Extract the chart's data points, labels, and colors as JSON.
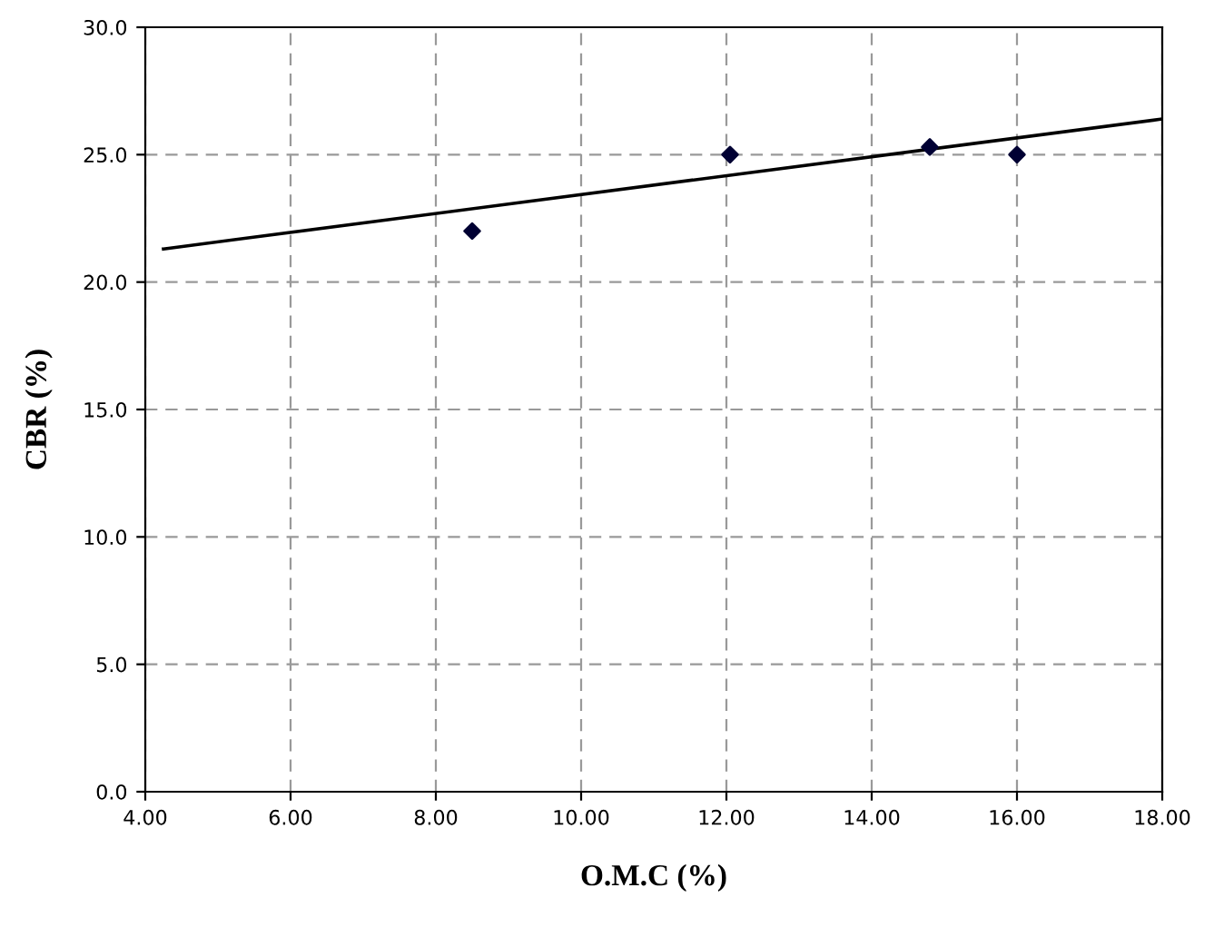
{
  "chart_data": {
    "type": "scatter",
    "xlabel": "O.M.C (%)",
    "ylabel": "CBR (%)",
    "series": [
      {
        "color": "#000033",
        "x": [
          8.5,
          12.05,
          14.8,
          16.0
        ],
        "values": [
          22.0,
          25.0,
          25.3,
          25.0
        ],
        "marker": "diamond"
      },
      {
        "type": "line",
        "color": "#000000",
        "x": [
          4.25,
          18.0
        ],
        "values": [
          21.3,
          26.4
        ],
        "line_style": "solid"
      }
    ],
    "xlim": [
      4,
      18
    ],
    "xticks": [
      {
        "value": 4,
        "label": "4.00"
      },
      {
        "value": 6,
        "label": "6.00"
      },
      {
        "value": 8,
        "label": "8.00"
      },
      {
        "value": 10,
        "label": "10.00"
      },
      {
        "value": 12,
        "label": "12.00"
      },
      {
        "value": 14,
        "label": "14.00"
      },
      {
        "value": 16,
        "label": "16.00"
      },
      {
        "value": 18,
        "label": "18.00"
      }
    ],
    "ylim": [
      0,
      30
    ],
    "yticks": [
      {
        "value": 0,
        "label": "0.0"
      },
      {
        "value": 5,
        "label": "5.0"
      },
      {
        "value": 10,
        "label": "10.0"
      },
      {
        "value": 15,
        "label": "15.0"
      },
      {
        "value": 20,
        "label": "20.0"
      },
      {
        "value": 25,
        "label": "25.0"
      },
      {
        "value": 30,
        "label": "30.0"
      }
    ],
    "grid": true,
    "legend": false
  }
}
